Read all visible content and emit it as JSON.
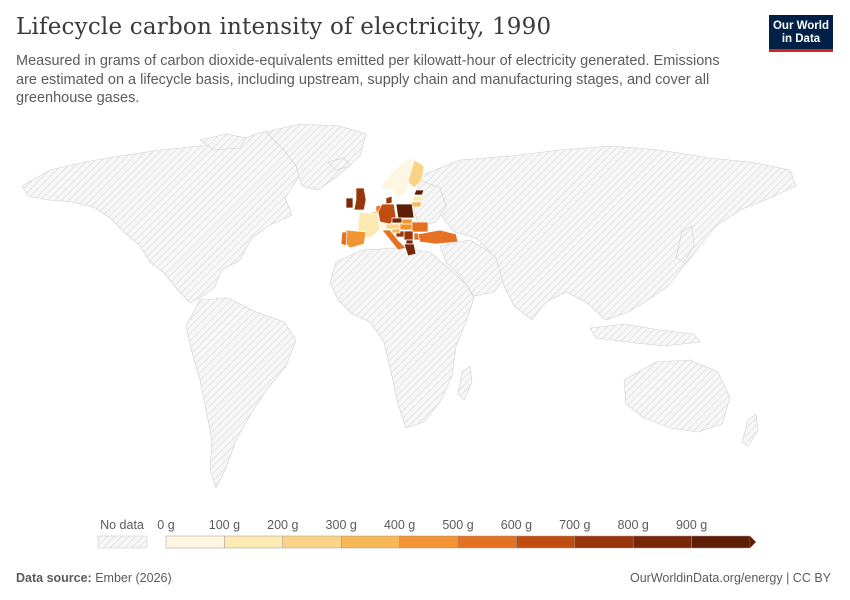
{
  "header": {
    "title": "Lifecycle carbon intensity of electricity, 1990",
    "subtitle": "Measured in grams of carbon dioxide-equivalents emitted per kilowatt-hour of electricity generated. Emissions are estimated on a lifecycle basis, including upstream, supply chain and manufacturing stages, and cover all greenhouse gases.",
    "logo_line1": "Our World",
    "logo_line2": "in Data"
  },
  "chart_data": {
    "type": "map",
    "title": "Lifecycle carbon intensity of electricity, 1990",
    "unit": "g CO2e/kWh",
    "year": 1990,
    "legend": {
      "no_data_label": "No data",
      "tick_labels": [
        "0 g",
        "100 g",
        "200 g",
        "300 g",
        "400 g",
        "500 g",
        "600 g",
        "700 g",
        "800 g",
        "900 g"
      ],
      "bins": [
        0,
        100,
        200,
        300,
        400,
        500,
        600,
        700,
        800,
        900,
        1000
      ],
      "colors": [
        "#fef6e1",
        "#fde9b2",
        "#fbd386",
        "#f8b656",
        "#f39332",
        "#e57122",
        "#c24d10",
        "#97350b",
        "#782709",
        "#5e1e06"
      ],
      "no_data_color": "#e9e9e9"
    },
    "regions_with_data": [
      {
        "name": "Norway",
        "bin": 0
      },
      {
        "name": "Sweden",
        "bin": 0
      },
      {
        "name": "Finland",
        "bin": 2
      },
      {
        "name": "Estonia",
        "bin": 9
      },
      {
        "name": "Latvia",
        "bin": 1
      },
      {
        "name": "Lithuania",
        "bin": 3
      },
      {
        "name": "Denmark",
        "bin": 7
      },
      {
        "name": "United Kingdom",
        "bin": 7
      },
      {
        "name": "Ireland",
        "bin": 8
      },
      {
        "name": "Netherlands",
        "bin": 5
      },
      {
        "name": "Belgium",
        "bin": 3
      },
      {
        "name": "Germany",
        "bin": 6
      },
      {
        "name": "Poland",
        "bin": 9
      },
      {
        "name": "Czechia",
        "bin": 8
      },
      {
        "name": "Slovakia",
        "bin": 4
      },
      {
        "name": "Austria",
        "bin": 2
      },
      {
        "name": "Switzerland",
        "bin": 0
      },
      {
        "name": "France",
        "bin": 1
      },
      {
        "name": "Spain",
        "bin": 4
      },
      {
        "name": "Portugal",
        "bin": 5
      },
      {
        "name": "Italy",
        "bin": 5
      },
      {
        "name": "Hungary",
        "bin": 4
      },
      {
        "name": "Romania",
        "bin": 5
      },
      {
        "name": "Bulgaria",
        "bin": 5
      },
      {
        "name": "Serbia",
        "bin": 7
      },
      {
        "name": "Bosnia and Herzegovina",
        "bin": 7
      },
      {
        "name": "Croatia",
        "bin": 3
      },
      {
        "name": "North Macedonia",
        "bin": 8
      },
      {
        "name": "Greece",
        "bin": 8
      },
      {
        "name": "Turkey",
        "bin": 5
      }
    ]
  },
  "footer": {
    "source_label": "Data source:",
    "source_value": "Ember (2026)",
    "link_text": "OurWorldinData.org/energy | CC BY"
  }
}
